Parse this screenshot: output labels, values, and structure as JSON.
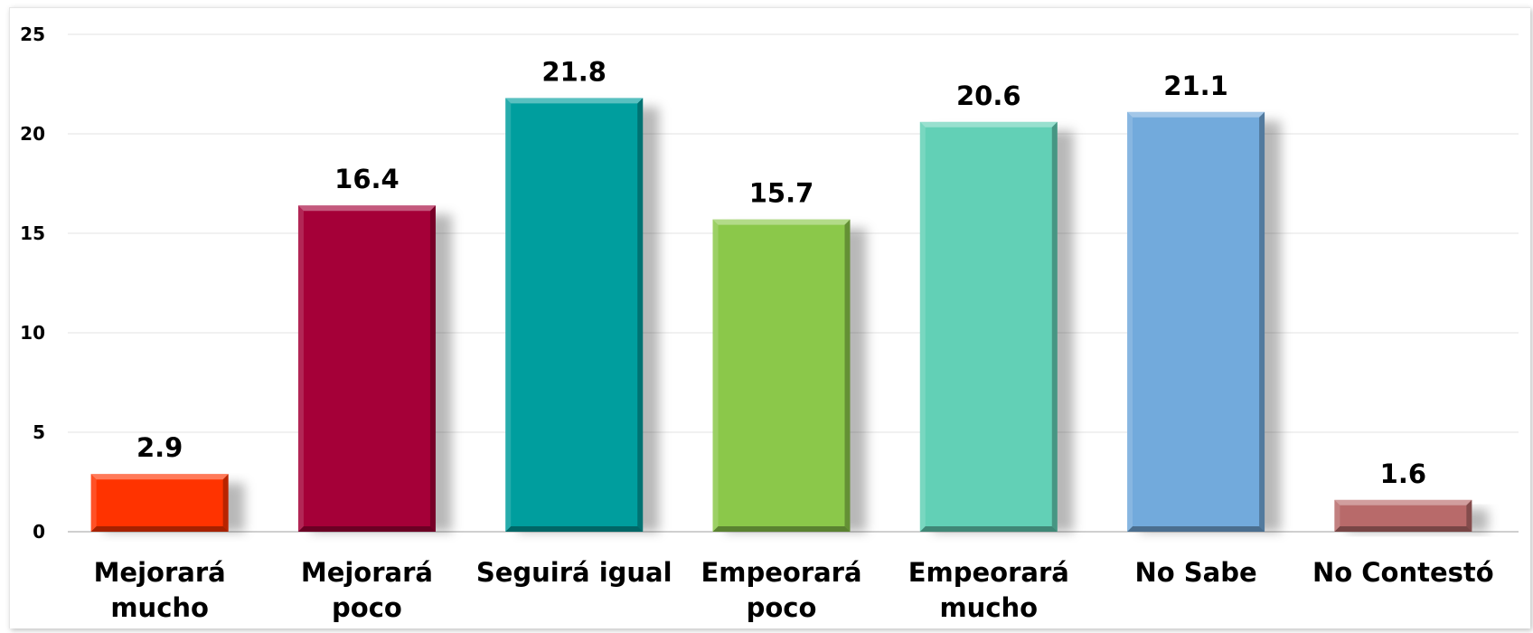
{
  "chart_data": {
    "type": "bar",
    "title": "",
    "xlabel": "",
    "ylabel": "",
    "ylim": [
      0,
      25
    ],
    "yticks": [
      0,
      5,
      10,
      15,
      20,
      25
    ],
    "grid": true,
    "legend": "none",
    "categories": [
      [
        "Mejorará",
        "mucho"
      ],
      [
        "Mejorará",
        "poco"
      ],
      [
        "Seguirá igual"
      ],
      [
        "Empeorará",
        "poco"
      ],
      [
        "Empeorará",
        "mucho"
      ],
      [
        "No Sabe"
      ],
      [
        "No Contestó"
      ]
    ],
    "values": [
      2.9,
      16.4,
      21.8,
      15.7,
      20.6,
      21.1,
      1.6
    ],
    "value_labels": [
      "2.9",
      "16.4",
      "21.8",
      "15.7",
      "20.6",
      "21.1",
      "1.6"
    ],
    "colors": [
      "#FF3300",
      "#A50038",
      "#009E9E",
      "#8BC84A",
      "#62D0B6",
      "#72AADC",
      "#B86A6A"
    ]
  }
}
